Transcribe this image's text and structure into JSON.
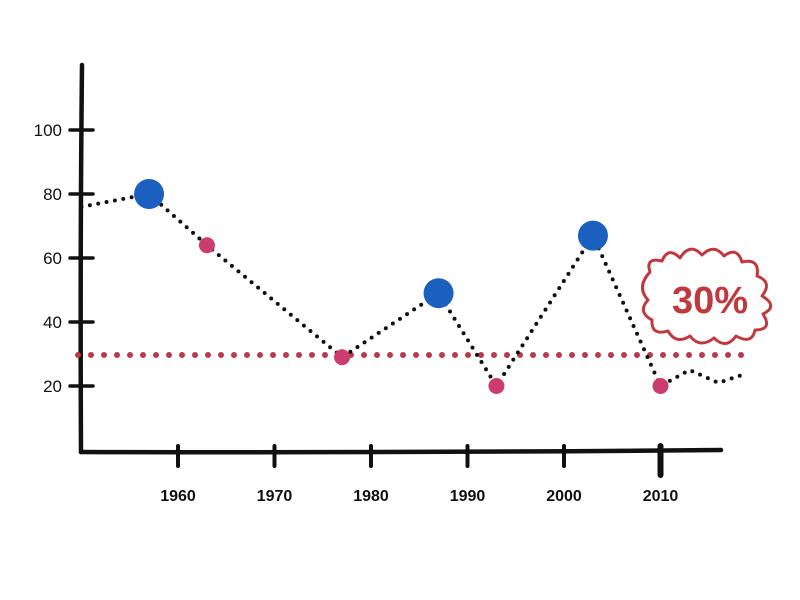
{
  "chart_data": {
    "type": "line",
    "x_ticks": [
      "1960",
      "1970",
      "1980",
      "1990",
      "2000",
      "2010"
    ],
    "y_ticks": [
      "20",
      "40",
      "60",
      "80",
      "100"
    ],
    "xlim": [
      1950,
      2018
    ],
    "ylim": [
      0,
      120
    ],
    "line": [
      {
        "x": 1950,
        "y": 76
      },
      {
        "x": 1957,
        "y": 80
      },
      {
        "x": 1963,
        "y": 64
      },
      {
        "x": 1977,
        "y": 29
      },
      {
        "x": 1987,
        "y": 49
      },
      {
        "x": 1993,
        "y": 20
      },
      {
        "x": 2003,
        "y": 67
      },
      {
        "x": 2010,
        "y": 20
      },
      {
        "x": 2013,
        "y": 25
      },
      {
        "x": 2016,
        "y": 21
      },
      {
        "x": 2019,
        "y": 24
      }
    ],
    "peaks": [
      {
        "x": 1957,
        "y": 80
      },
      {
        "x": 1987,
        "y": 49
      },
      {
        "x": 2003,
        "y": 67
      }
    ],
    "troughs": [
      {
        "x": 1963,
        "y": 64
      },
      {
        "x": 1977,
        "y": 29
      },
      {
        "x": 1993,
        "y": 20
      },
      {
        "x": 2010,
        "y": 20
      }
    ],
    "reference_line": {
      "y": 30,
      "color": "#b83a4b"
    },
    "annotation": {
      "text": "30%",
      "color": "#c0393f"
    },
    "colors": {
      "peak": "#1b5fbf",
      "trough": "#cc3d6e",
      "line": "#111111"
    },
    "grid": false,
    "legend": false
  }
}
